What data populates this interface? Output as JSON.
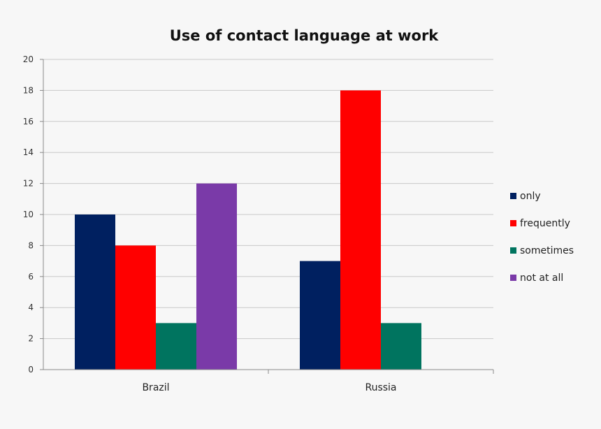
{
  "chart_data": {
    "type": "bar",
    "title": "Use of contact language at work",
    "xlabel": "",
    "ylabel": "",
    "categories": [
      "Brazil",
      "Russia"
    ],
    "series": [
      {
        "name": "only",
        "values": [
          10,
          7
        ],
        "color": "#002060"
      },
      {
        "name": "frequently",
        "values": [
          8,
          18
        ],
        "color": "#ff0000"
      },
      {
        "name": "sometimes",
        "values": [
          3,
          3
        ],
        "color": "#00745f"
      },
      {
        "name": "not at all",
        "values": [
          12,
          0
        ],
        "color": "#7a3aa8"
      }
    ],
    "ylim": [
      0,
      20
    ],
    "yticks": [
      0,
      2,
      4,
      6,
      8,
      10,
      12,
      14,
      16,
      18,
      20
    ],
    "grid": true,
    "legend_position": "right"
  }
}
